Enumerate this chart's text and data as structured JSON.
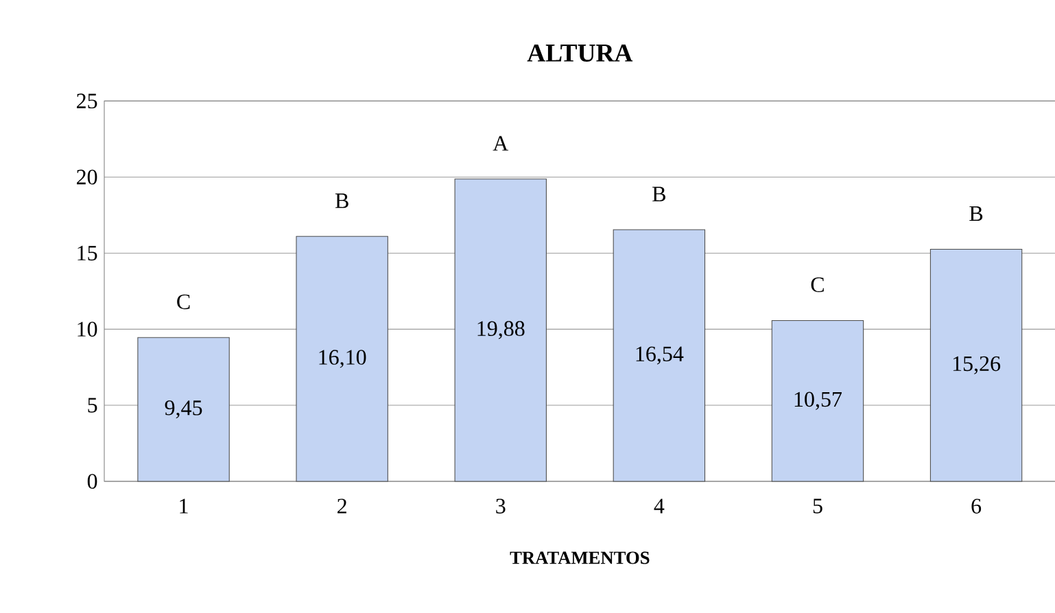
{
  "chart_data": {
    "type": "bar",
    "title": "ALTURA",
    "xlabel": "TRATAMENTOS",
    "categories": [
      "1",
      "2",
      "3",
      "4",
      "5",
      "6"
    ],
    "values": [
      9.45,
      16.1,
      19.88,
      16.54,
      10.57,
      15.26
    ],
    "value_labels": [
      "9,45",
      "16,10",
      "19,88",
      "16,54",
      "10,57",
      "15,26"
    ],
    "color": "#b4c9f0",
    "ylim": [
      0,
      25
    ],
    "yticks": [
      0,
      5,
      10,
      15,
      20,
      25
    ],
    "grid": "y",
    "annotations": [
      {
        "text": "C",
        "x": "1",
        "y": 9.45
      },
      {
        "text": "B",
        "x": "2",
        "y": 16.1
      },
      {
        "text": "A",
        "x": "3",
        "y": 19.88
      },
      {
        "text": "B",
        "x": "4",
        "y": 16.54
      },
      {
        "text": "C",
        "x": "5",
        "y": 10.57
      },
      {
        "text": "B",
        "x": "6",
        "y": 15.26
      }
    ]
  }
}
